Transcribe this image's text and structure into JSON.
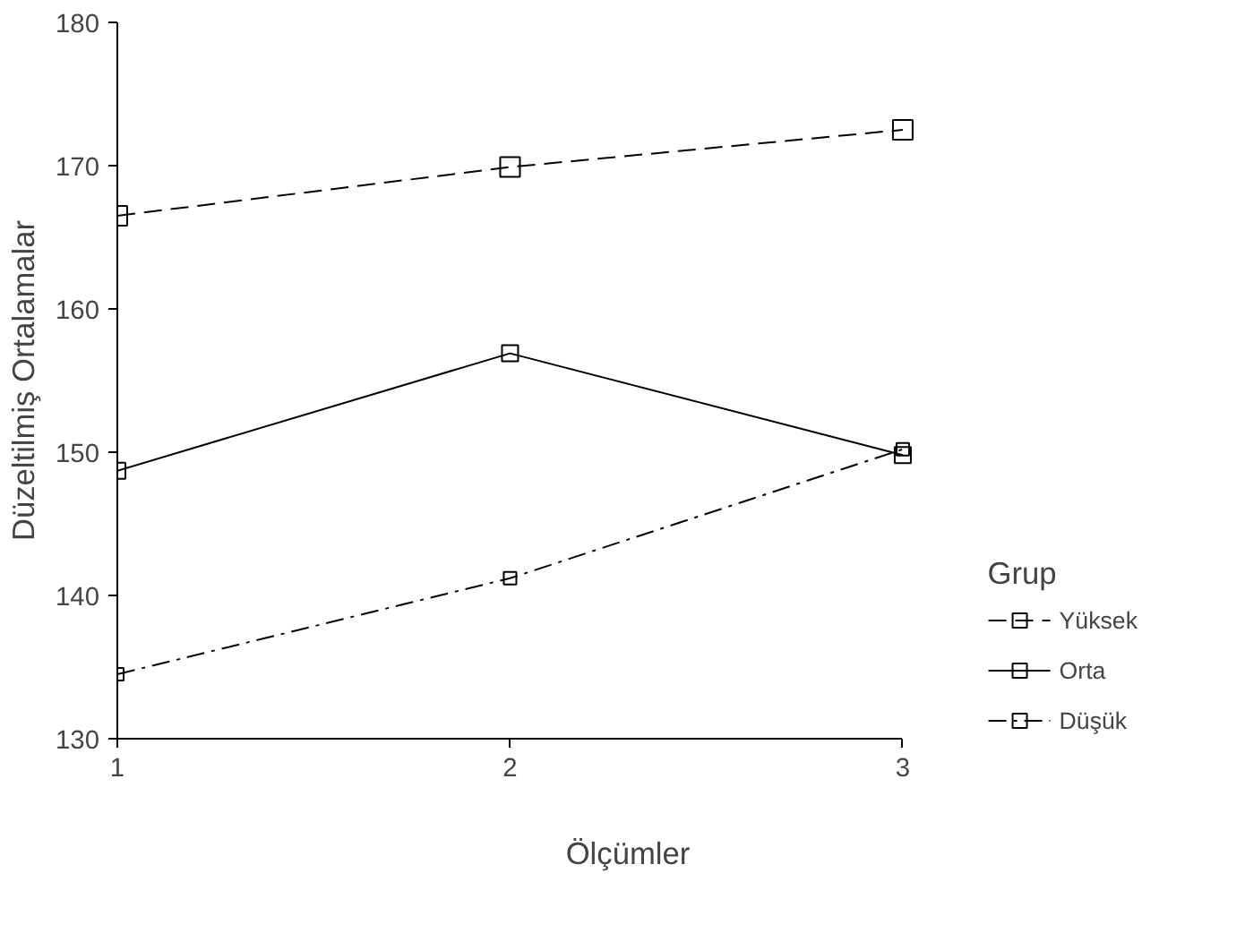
{
  "chart_data": {
    "type": "line",
    "xlabel": "Ölçümler",
    "ylabel": "Düzeltilmiş Ortalamalar",
    "legend_title": "Grup",
    "x": [
      1,
      2,
      3
    ],
    "xlim": [
      1,
      3
    ],
    "xticks": [
      1,
      2,
      3
    ],
    "ylim": [
      130,
      180
    ],
    "yticks": [
      130,
      140,
      150,
      160,
      170,
      180
    ],
    "grid": false,
    "legend": "right",
    "marker": "square",
    "series": [
      {
        "name": "Yüksek",
        "color": "#000000",
        "line_style": "dashed",
        "values": [
          166.5,
          169.9,
          172.5
        ]
      },
      {
        "name": "Orta",
        "color": "#000000",
        "line_style": "solid",
        "values": [
          148.7,
          156.9,
          149.8
        ]
      },
      {
        "name": "Düşük",
        "color": "#000000",
        "line_style": "dashdot",
        "values": [
          134.5,
          141.2,
          150.2
        ]
      }
    ]
  }
}
